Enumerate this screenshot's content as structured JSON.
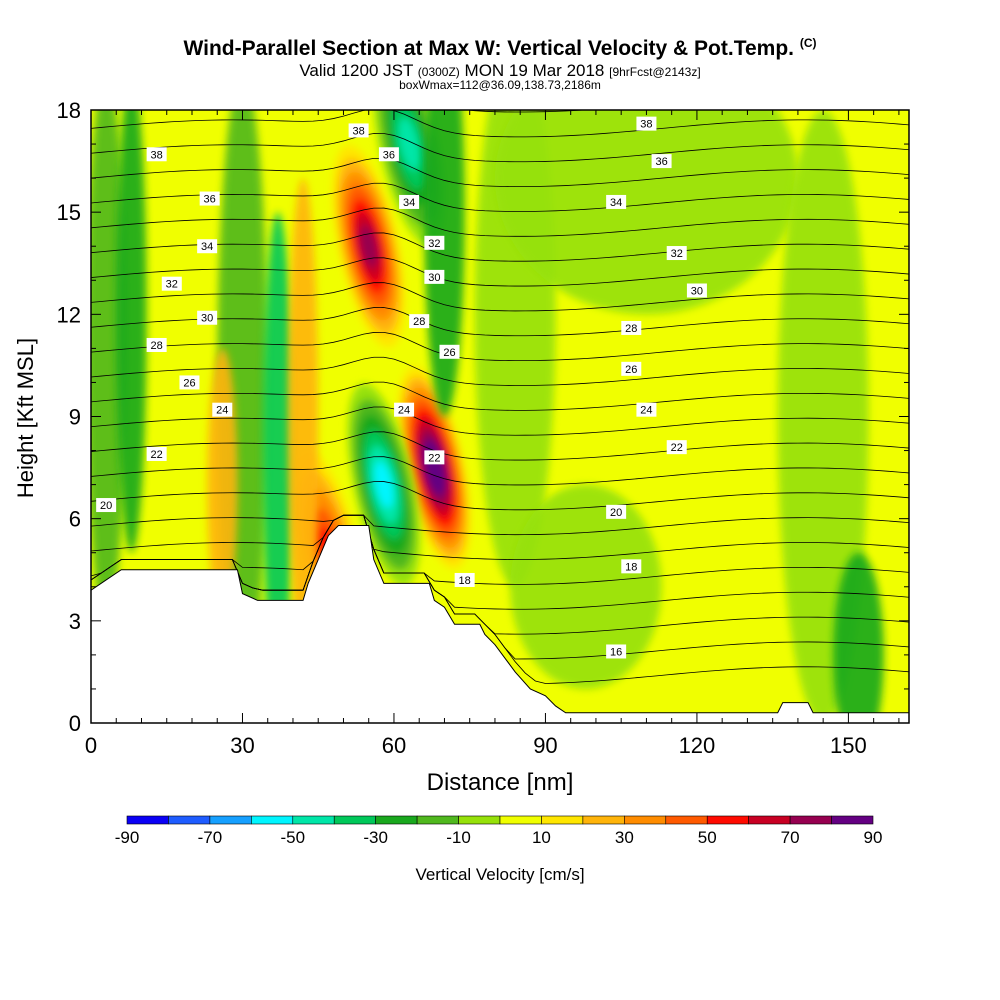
{
  "header": {
    "title": "Wind-Parallel Section at Max W: Vertical Velocity & Pot.Temp.",
    "title_suffix": "(C)",
    "subtitle_a": "Valid 1200 JST",
    "subtitle_b": "(0300Z)",
    "subtitle_c": "MON 19 Mar 2018",
    "subtitle_d": "[9hrFcst@2143z]",
    "subtitle2": "boxWmax=112@36.09,138.73,2186m"
  },
  "chart_data": {
    "type": "heatmap",
    "title": "Wind-Parallel Section at Max W: Vertical Velocity & Pot.Temp.",
    "xlabel": "Distance [nm]",
    "ylabel": "Height [Kft MSL]",
    "xlim": [
      0,
      162
    ],
    "ylim": [
      0,
      18
    ],
    "xticks": [
      0,
      30,
      60,
      90,
      120,
      150
    ],
    "yticks": [
      0,
      3,
      6,
      9,
      12,
      15,
      18
    ],
    "colorbar": {
      "label": "Vertical Velocity [cm/s]",
      "tick_labels": [
        "-90",
        "-70",
        "-50",
        "-30",
        "-10",
        "10",
        "30",
        "50",
        "70",
        "90"
      ],
      "colors": [
        "#0a00f5",
        "#1e5cff",
        "#16a0ff",
        "#00f5ff",
        "#00e6a8",
        "#00c85a",
        "#19a81e",
        "#50b81e",
        "#96e10a",
        "#f0ff00",
        "#ffe600",
        "#ffb40a",
        "#ff8c00",
        "#ff5a00",
        "#ff0a00",
        "#c80023",
        "#960050",
        "#640082"
      ]
    },
    "velocity_features": [
      {
        "x": 68,
        "y": 7.5,
        "w": 90,
        "type": "updraft"
      },
      {
        "x": 55,
        "y": 14,
        "w": 75,
        "type": "updraft"
      },
      {
        "x": 47,
        "y": 5,
        "w": 55,
        "type": "updraft"
      },
      {
        "x": 58,
        "y": 7,
        "w": -60,
        "type": "downdraft"
      },
      {
        "x": 63,
        "y": 17,
        "w": -55,
        "type": "downdraft"
      }
    ],
    "theta_contour_labels": [
      {
        "value": "38",
        "x": 13,
        "y": 16.7
      },
      {
        "value": "36",
        "x": 23.5,
        "y": 15.4
      },
      {
        "value": "34",
        "x": 23,
        "y": 14.0
      },
      {
        "value": "32",
        "x": 16,
        "y": 12.9
      },
      {
        "value": "30",
        "x": 23,
        "y": 11.9
      },
      {
        "value": "28",
        "x": 13,
        "y": 11.1
      },
      {
        "value": "26",
        "x": 19.5,
        "y": 10.0
      },
      {
        "value": "24",
        "x": 26,
        "y": 9.2
      },
      {
        "value": "22",
        "x": 13,
        "y": 7.9
      },
      {
        "value": "20",
        "x": 3,
        "y": 6.4
      },
      {
        "value": "38",
        "x": 53,
        "y": 17.4
      },
      {
        "value": "36",
        "x": 59,
        "y": 16.7
      },
      {
        "value": "34",
        "x": 63,
        "y": 15.3
      },
      {
        "value": "32",
        "x": 68,
        "y": 14.1
      },
      {
        "value": "30",
        "x": 68,
        "y": 13.1
      },
      {
        "value": "28",
        "x": 65,
        "y": 11.8
      },
      {
        "value": "26",
        "x": 71,
        "y": 10.9
      },
      {
        "value": "24",
        "x": 62,
        "y": 9.2
      },
      {
        "value": "22",
        "x": 68,
        "y": 7.8
      },
      {
        "value": "18",
        "x": 74,
        "y": 4.2
      },
      {
        "value": "38",
        "x": 110,
        "y": 17.6
      },
      {
        "value": "36",
        "x": 113,
        "y": 16.5
      },
      {
        "value": "34",
        "x": 104,
        "y": 15.3
      },
      {
        "value": "32",
        "x": 116,
        "y": 13.8
      },
      {
        "value": "30",
        "x": 120,
        "y": 12.7
      },
      {
        "value": "28",
        "x": 107,
        "y": 11.6
      },
      {
        "value": "26",
        "x": 107,
        "y": 10.4
      },
      {
        "value": "24",
        "x": 110,
        "y": 9.2
      },
      {
        "value": "22",
        "x": 116,
        "y": 8.1
      },
      {
        "value": "20",
        "x": 104,
        "y": 6.2
      },
      {
        "value": "18",
        "x": 107,
        "y": 4.6
      },
      {
        "value": "16",
        "x": 104,
        "y": 2.1
      }
    ],
    "terrain": [
      [
        0,
        3.9
      ],
      [
        3,
        4.2
      ],
      [
        6,
        4.5
      ],
      [
        29,
        4.5
      ],
      [
        30,
        3.8
      ],
      [
        33,
        3.6
      ],
      [
        42,
        3.6
      ],
      [
        43,
        4.1
      ],
      [
        45,
        4.8
      ],
      [
        47,
        5.5
      ],
      [
        49,
        5.8
      ],
      [
        55,
        5.8
      ],
      [
        56,
        4.8
      ],
      [
        58,
        4.1
      ],
      [
        67,
        4.1
      ],
      [
        68,
        3.6
      ],
      [
        70,
        3.4
      ],
      [
        72,
        2.9
      ],
      [
        77,
        2.9
      ],
      [
        78,
        2.6
      ],
      [
        80,
        2.3
      ],
      [
        82,
        1.9
      ],
      [
        84,
        1.5
      ],
      [
        87,
        1.0
      ],
      [
        90,
        0.8
      ],
      [
        92,
        0.5
      ],
      [
        94,
        0.3
      ],
      [
        136,
        0.3
      ],
      [
        137,
        0.6
      ],
      [
        142,
        0.6
      ],
      [
        143,
        0.3
      ],
      [
        162,
        0.3
      ]
    ]
  }
}
